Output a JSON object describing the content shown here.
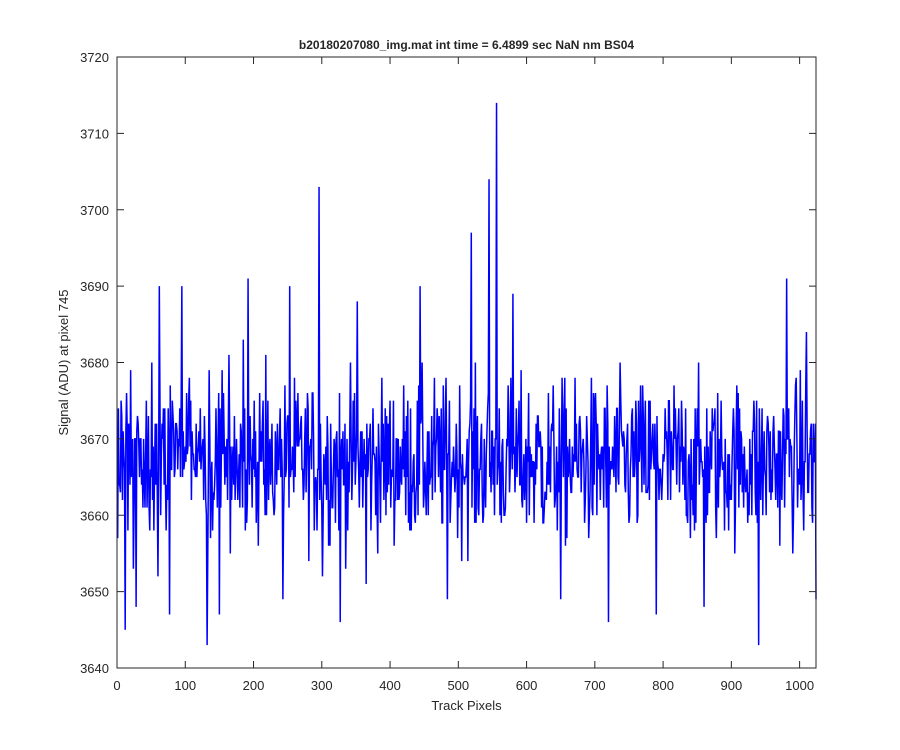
{
  "chart_data": {
    "type": "line",
    "title": "b20180207080_img.mat int time = 6.4899 sec  NaN nm BS04",
    "xlabel": "Track Pixels",
    "ylabel": "Signal (ADU) at pixel 745",
    "xlim": [
      0,
      1024
    ],
    "ylim": [
      3640,
      3720
    ],
    "x_ticks": [
      0,
      100,
      200,
      300,
      400,
      500,
      600,
      700,
      800,
      900,
      1000
    ],
    "y_ticks": [
      3640,
      3650,
      3660,
      3670,
      3680,
      3690,
      3700,
      3710,
      3720
    ],
    "grid": false,
    "box": true,
    "line_color": "#0000ff",
    "series": [
      {
        "x_start": 1,
        "x_step": 1,
        "noise_mean": 3667,
        "noise_range": [
          3643,
          3714
        ],
        "values_sampled": {
          "x": [
            1,
            12,
            28,
            62,
            77,
            95,
            132,
            150,
            192,
            243,
            253,
            296,
            301,
            327,
            352,
            365,
            444,
            484,
            519,
            545,
            556,
            580,
            650,
            720,
            790,
            860,
            940,
            981,
            1010,
            1024
          ],
          "y": [
            3657,
            3645,
            3648,
            3690,
            3647,
            3690,
            3643,
            3647,
            3691,
            3649,
            3690,
            3703,
            3652,
            3646,
            3688,
            3651,
            3690,
            3649,
            3697,
            3704,
            3714,
            3689,
            3649,
            3646,
            3647,
            3648,
            3643,
            3691,
            3684,
            3649
          ]
        }
      }
    ]
  }
}
